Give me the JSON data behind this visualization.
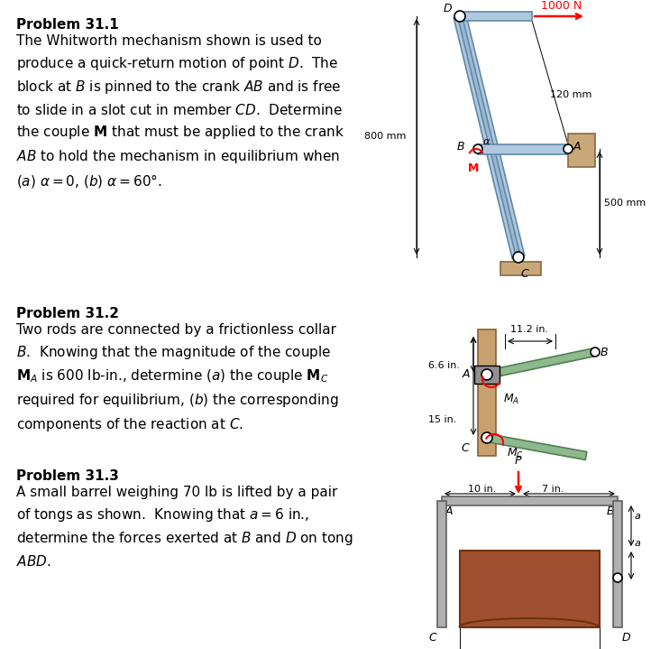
{
  "background_color": "#ffffff",
  "page_width": 7.22,
  "page_height": 7.19,
  "problems": [
    {
      "title": "Problem 31.1",
      "text_lines": [
        "The Whitworth mechanism shown is used to",
        "produce a quick-return motion of point $D$.  The",
        "block at $B$ is pinned to the crank $AB$ and is free",
        "to slide in a slot cut in member $CD$.  Determine",
        "the couple $\\mathbf{M}$ that must be applied to the crank",
        "$AB$ to hold the mechanism in equilibrium when",
        "$(a)$ $\\alpha = 0$, $(b)$ $\\alpha = 60°$."
      ]
    },
    {
      "title": "Problem 31.2",
      "text_lines": [
        "Two rods are connected by a frictionless collar",
        "$B$.  Knowing that the magnitude of the couple",
        "$\\mathbf{M}_A$ is 600 lb-in., determine $(a)$ the couple $\\mathbf{M}_C$",
        "required for equilibrium, $(b)$ the corresponding",
        "components of the reaction at $C$."
      ]
    },
    {
      "title": "Problem 31.3",
      "text_lines": [
        "A small barrel weighing 70 lb is lifted by a pair",
        "of tongs as shown.  Knowing that $a = 6$ in.,",
        "determine the forces exerted at $B$ and $D$ on tong",
        "$ABD$."
      ]
    }
  ]
}
